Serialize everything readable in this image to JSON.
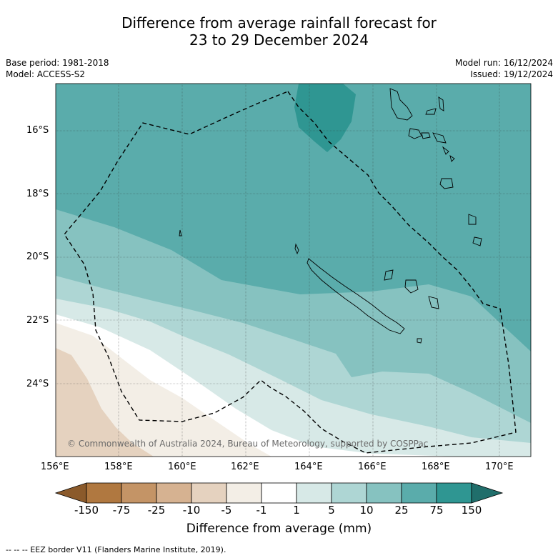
{
  "header": {
    "title_line1": "Difference from average rainfall forecast for",
    "title_line2": "23 to 29 December 2024",
    "base_period": "Base period: 1981-2018",
    "model": "Model: ACCESS-S2",
    "model_run": "Model run: 16/12/2024",
    "issued": "Issued: 19/12/2024"
  },
  "map": {
    "lat_labels": [
      "16°S",
      "18°S",
      "20°S",
      "22°S",
      "24°S"
    ],
    "lon_labels": [
      "156°E",
      "158°E",
      "160°E",
      "162°E",
      "164°E",
      "166°E",
      "168°E",
      "170°E"
    ],
    "copyright": "© Commonwealth of Australia 2024, Bureau of Meteorology, supported by COSPPac",
    "gridlines": true
  },
  "colorbar": {
    "labels": [
      "-150",
      "-75",
      "-25",
      "-10",
      "-5",
      "-1",
      "1",
      "5",
      "10",
      "25",
      "75",
      "150"
    ],
    "colors": [
      "#8b5a2b",
      "#b07840",
      "#c49466",
      "#d6b291",
      "#e5d2bf",
      "#f3eee6",
      "#ffffff",
      "#d7e9e7",
      "#aed6d4",
      "#86c2c0",
      "#5aacab",
      "#2f9692",
      "#206e6b"
    ],
    "title": "Difference from average (mm)"
  },
  "footer": {
    "legend_symbol": "--  --  --",
    "legend_text": "EEZ border V11 (Flanders Marine Institute, 2019)."
  }
}
